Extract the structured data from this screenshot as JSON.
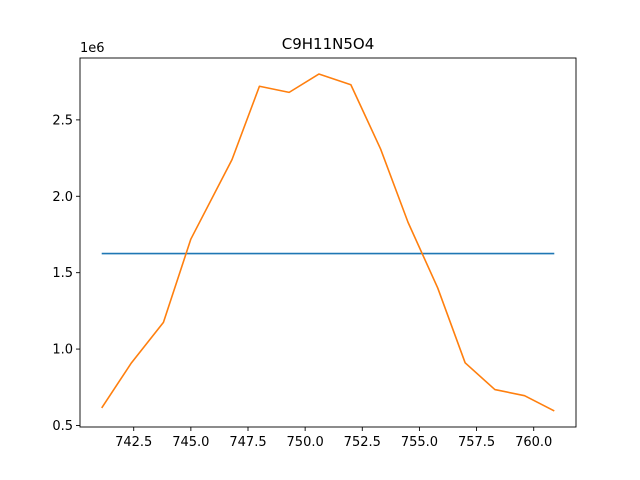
{
  "chart_data": {
    "type": "line",
    "title": "C9H11N5O4",
    "xlabel": "",
    "ylabel": "",
    "y_offset_label": "1e6",
    "xlim": [
      740.15,
      761.85
    ],
    "ylim": [
      0.49,
      2.905
    ],
    "x_ticks": [
      742.5,
      745.0,
      747.5,
      750.0,
      752.5,
      755.0,
      757.5,
      760.0
    ],
    "x_tick_labels": [
      "742.5",
      "745.0",
      "747.5",
      "750.0",
      "752.5",
      "755.0",
      "757.5",
      "760.0"
    ],
    "y_ticks": [
      0.5,
      1.0,
      1.5,
      2.0,
      2.5
    ],
    "y_tick_labels": [
      "0.5",
      "1.0",
      "1.5",
      "2.0",
      "2.5"
    ],
    "grid": false,
    "series": [
      {
        "color": "#1f77b4",
        "x": [
          741.1,
          760.9
        ],
        "y": [
          1.625,
          1.625
        ]
      },
      {
        "color": "#ff7f0e",
        "x": [
          741.1,
          742.4,
          743.8,
          745.0,
          746.8,
          748.0,
          749.3,
          750.6,
          752.0,
          753.3,
          754.5,
          755.8,
          757.0,
          758.3,
          759.6,
          760.9
        ],
        "y": [
          0.615,
          0.91,
          1.175,
          1.72,
          2.24,
          2.72,
          2.68,
          2.8,
          2.73,
          2.31,
          1.83,
          1.4,
          0.91,
          0.735,
          0.695,
          0.595
        ]
      }
    ]
  }
}
